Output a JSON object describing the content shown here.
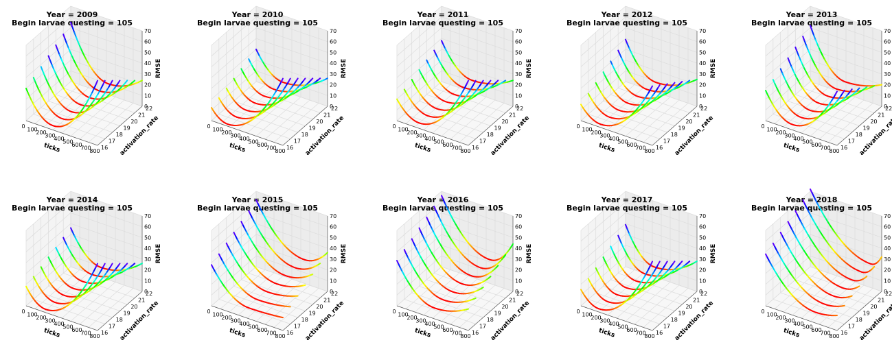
{
  "figure": {
    "shared": {
      "zlabel": "RMSE",
      "xlabel": "ticks",
      "ylabel": "activation_rate",
      "xticks": [
        "0",
        "100",
        "200",
        "300",
        "400",
        "500",
        "600",
        "700",
        "800"
      ],
      "yticks": [
        "16",
        "17",
        "18",
        "19",
        "20",
        "21",
        "22"
      ],
      "zticks": [
        "0",
        "10",
        "20",
        "30",
        "40",
        "50",
        "60",
        "70"
      ]
    }
  },
  "chart_data": [
    {
      "type": "line3d",
      "title_line1": "Year = 2009",
      "title_line2": "Begin larvae questing = 105",
      "xlim": [
        0,
        800
      ],
      "ylim": [
        16,
        22
      ],
      "zlim": [
        0,
        70
      ],
      "colormap": "hsv, by activation_rate",
      "curves": [
        {
          "activation_rate": 16,
          "z_start": 30,
          "z_min": 4,
          "x_min": 300,
          "z_end": 60
        },
        {
          "activation_rate": 17,
          "z_start": 34,
          "z_min": 5,
          "x_min": 320,
          "z_end": 54
        },
        {
          "activation_rate": 18,
          "z_start": 38,
          "z_min": 6,
          "x_min": 340,
          "z_end": 48
        },
        {
          "activation_rate": 19,
          "z_start": 42,
          "z_min": 7,
          "x_min": 360,
          "z_end": 42
        },
        {
          "activation_rate": 20,
          "z_start": 46,
          "z_min": 8,
          "x_min": 380,
          "z_end": 36
        },
        {
          "activation_rate": 21,
          "z_start": 50,
          "z_min": 9,
          "x_min": 400,
          "z_end": 30
        },
        {
          "activation_rate": 22,
          "z_start": 55,
          "z_min": 10,
          "x_min": 420,
          "z_end": 24
        }
      ]
    },
    {
      "type": "line3d",
      "title_line1": "Year = 2010",
      "title_line2": "Begin larvae questing = 105",
      "xlim": [
        0,
        800
      ],
      "ylim": [
        16,
        22
      ],
      "zlim": [
        0,
        70
      ],
      "colormap": "hsv, by activation_rate",
      "curves": [
        {
          "activation_rate": 16,
          "z_start": 12,
          "z_min": 2,
          "x_min": 180,
          "z_end": 62
        },
        {
          "activation_rate": 17,
          "z_start": 15,
          "z_min": 3,
          "x_min": 200,
          "z_end": 56
        },
        {
          "activation_rate": 18,
          "z_start": 18,
          "z_min": 4,
          "x_min": 220,
          "z_end": 50
        },
        {
          "activation_rate": 19,
          "z_start": 21,
          "z_min": 5,
          "x_min": 240,
          "z_end": 44
        },
        {
          "activation_rate": 20,
          "z_start": 24,
          "z_min": 6,
          "x_min": 260,
          "z_end": 38
        },
        {
          "activation_rate": 21,
          "z_start": 27,
          "z_min": 7,
          "x_min": 280,
          "z_end": 32
        },
        {
          "activation_rate": 22,
          "z_start": 30,
          "z_min": 8,
          "x_min": 300,
          "z_end": 26
        }
      ]
    },
    {
      "type": "line3d",
      "title_line1": "Year = 2011",
      "title_line2": "Begin larvae questing = 105",
      "xlim": [
        0,
        800
      ],
      "ylim": [
        16,
        22
      ],
      "zlim": [
        0,
        70
      ],
      "colormap": "hsv, by activation_rate",
      "curves": [
        {
          "activation_rate": 16,
          "z_start": 20,
          "z_min": 5,
          "x_min": 250,
          "z_end": 60
        },
        {
          "activation_rate": 17,
          "z_start": 23,
          "z_min": 6,
          "x_min": 265,
          "z_end": 54
        },
        {
          "activation_rate": 18,
          "z_start": 26,
          "z_min": 7,
          "x_min": 280,
          "z_end": 48
        },
        {
          "activation_rate": 19,
          "z_start": 29,
          "z_min": 8,
          "x_min": 295,
          "z_end": 42
        },
        {
          "activation_rate": 20,
          "z_start": 32,
          "z_min": 9,
          "x_min": 310,
          "z_end": 36
        },
        {
          "activation_rate": 21,
          "z_start": 35,
          "z_min": 10,
          "x_min": 325,
          "z_end": 30
        },
        {
          "activation_rate": 22,
          "z_start": 38,
          "z_min": 11,
          "x_min": 340,
          "z_end": 24
        }
      ]
    },
    {
      "type": "line3d",
      "title_line1": "Year = 2012",
      "title_line2": "Begin larvae questing = 105",
      "xlim": [
        0,
        800
      ],
      "ylim": [
        16,
        22
      ],
      "zlim": [
        0,
        70
      ],
      "colormap": "hsv, by activation_rate",
      "curves": [
        {
          "activation_rate": 16,
          "z_start": 15,
          "z_min": 3,
          "x_min": 220,
          "z_end": 55
        },
        {
          "activation_rate": 17,
          "z_start": 19,
          "z_min": 4,
          "x_min": 240,
          "z_end": 50
        },
        {
          "activation_rate": 18,
          "z_start": 23,
          "z_min": 5,
          "x_min": 260,
          "z_end": 45
        },
        {
          "activation_rate": 19,
          "z_start": 27,
          "z_min": 6,
          "x_min": 280,
          "z_end": 40
        },
        {
          "activation_rate": 20,
          "z_start": 31,
          "z_min": 7,
          "x_min": 300,
          "z_end": 35
        },
        {
          "activation_rate": 21,
          "z_start": 35,
          "z_min": 8,
          "x_min": 320,
          "z_end": 30
        },
        {
          "activation_rate": 22,
          "z_start": 39,
          "z_min": 9,
          "x_min": 340,
          "z_end": 25
        }
      ]
    },
    {
      "type": "line3d",
      "title_line1": "Year = 2013",
      "title_line2": "Begin larvae questing = 105",
      "xlim": [
        0,
        800
      ],
      "ylim": [
        16,
        22
      ],
      "zlim": [
        0,
        70
      ],
      "colormap": "hsv, by activation_rate",
      "curves": [
        {
          "activation_rate": 16,
          "z_start": 28,
          "z_min": 5,
          "x_min": 300,
          "z_end": 50
        },
        {
          "activation_rate": 17,
          "z_start": 32,
          "z_min": 6,
          "x_min": 315,
          "z_end": 45
        },
        {
          "activation_rate": 18,
          "z_start": 36,
          "z_min": 7,
          "x_min": 330,
          "z_end": 40
        },
        {
          "activation_rate": 19,
          "z_start": 40,
          "z_min": 8,
          "x_min": 345,
          "z_end": 35
        },
        {
          "activation_rate": 20,
          "z_start": 44,
          "z_min": 9,
          "x_min": 360,
          "z_end": 30
        },
        {
          "activation_rate": 21,
          "z_start": 48,
          "z_min": 10,
          "x_min": 375,
          "z_end": 25
        },
        {
          "activation_rate": 22,
          "z_start": 52,
          "z_min": 11,
          "x_min": 390,
          "z_end": 20
        }
      ]
    },
    {
      "type": "line3d",
      "title_line1": "Year = 2014",
      "title_line2": "Begin larvae questing = 105",
      "xlim": [
        0,
        800
      ],
      "ylim": [
        16,
        22
      ],
      "zlim": [
        0,
        70
      ],
      "colormap": "hsv, by activation_rate",
      "curves": [
        {
          "activation_rate": 16,
          "z_start": 18,
          "z_min": 3,
          "x_min": 220,
          "z_end": 62
        },
        {
          "activation_rate": 17,
          "z_start": 21,
          "z_min": 4,
          "x_min": 240,
          "z_end": 56
        },
        {
          "activation_rate": 18,
          "z_start": 24,
          "z_min": 5,
          "x_min": 260,
          "z_end": 50
        },
        {
          "activation_rate": 19,
          "z_start": 27,
          "z_min": 6,
          "x_min": 280,
          "z_end": 44
        },
        {
          "activation_rate": 20,
          "z_start": 30,
          "z_min": 7,
          "x_min": 300,
          "z_end": 38
        },
        {
          "activation_rate": 21,
          "z_start": 33,
          "z_min": 8,
          "x_min": 320,
          "z_end": 32
        },
        {
          "activation_rate": 22,
          "z_start": 36,
          "z_min": 9,
          "x_min": 340,
          "z_end": 26
        }
      ]
    },
    {
      "type": "line3d",
      "title_line1": "Year = 2015",
      "title_line2": "Begin larvae questing = 105",
      "xlim": [
        0,
        800
      ],
      "ylim": [
        16,
        22
      ],
      "zlim": [
        0,
        70
      ],
      "colormap": "hsv, by activation_rate",
      "curves": [
        {
          "activation_rate": 16,
          "z_start": 38,
          "z_min": 10,
          "x_min": 420,
          "z_end": 12
        },
        {
          "activation_rate": 17,
          "z_start": 42,
          "z_min": 12,
          "x_min": 440,
          "z_end": 16
        },
        {
          "activation_rate": 18,
          "z_start": 46,
          "z_min": 14,
          "x_min": 460,
          "z_end": 20
        },
        {
          "activation_rate": 19,
          "z_start": 50,
          "z_min": 16,
          "x_min": 480,
          "z_end": 24
        },
        {
          "activation_rate": 20,
          "z_start": 54,
          "z_min": 18,
          "x_min": 500,
          "z_end": 28
        },
        {
          "activation_rate": 21,
          "z_start": 58,
          "z_min": 20,
          "x_min": 520,
          "z_end": 32
        },
        {
          "activation_rate": 22,
          "z_start": 62,
          "z_min": 22,
          "x_min": 540,
          "z_end": 36
        }
      ]
    },
    {
      "type": "line3d",
      "title_line1": "Year = 2016",
      "title_line2": "Begin larvae questing = 105",
      "xlim": [
        0,
        800
      ],
      "ylim": [
        16,
        22
      ],
      "zlim": [
        0,
        70
      ],
      "colormap": "hsv, by activation_rate",
      "curves": [
        {
          "activation_rate": 16,
          "z_start": 42,
          "z_min": 10,
          "x_min": 420,
          "z_end": 20
        },
        {
          "activation_rate": 17,
          "z_start": 46,
          "z_min": 12,
          "x_min": 440,
          "z_end": 24
        },
        {
          "activation_rate": 18,
          "z_start": 50,
          "z_min": 14,
          "x_min": 460,
          "z_end": 28
        },
        {
          "activation_rate": 19,
          "z_start": 54,
          "z_min": 16,
          "x_min": 480,
          "z_end": 32
        },
        {
          "activation_rate": 20,
          "z_start": 58,
          "z_min": 18,
          "x_min": 500,
          "z_end": 36
        },
        {
          "activation_rate": 21,
          "z_start": 62,
          "z_min": 20,
          "x_min": 520,
          "z_end": 40
        },
        {
          "activation_rate": 22,
          "z_start": 66,
          "z_min": 22,
          "x_min": 540,
          "z_end": 44
        }
      ]
    },
    {
      "type": "line3d",
      "title_line1": "Year = 2017",
      "title_line2": "Begin larvae questing = 105",
      "xlim": [
        0,
        800
      ],
      "ylim": [
        16,
        22
      ],
      "zlim": [
        0,
        70
      ],
      "colormap": "hsv, by activation_rate",
      "curves": [
        {
          "activation_rate": 16,
          "z_start": 15,
          "z_min": 3,
          "x_min": 200,
          "z_end": 64
        },
        {
          "activation_rate": 17,
          "z_start": 19,
          "z_min": 4,
          "x_min": 220,
          "z_end": 58
        },
        {
          "activation_rate": 18,
          "z_start": 23,
          "z_min": 5,
          "x_min": 240,
          "z_end": 52
        },
        {
          "activation_rate": 19,
          "z_start": 27,
          "z_min": 6,
          "x_min": 260,
          "z_end": 46
        },
        {
          "activation_rate": 20,
          "z_start": 31,
          "z_min": 7,
          "x_min": 280,
          "z_end": 40
        },
        {
          "activation_rate": 21,
          "z_start": 35,
          "z_min": 8,
          "x_min": 300,
          "z_end": 34
        },
        {
          "activation_rate": 22,
          "z_start": 39,
          "z_min": 9,
          "x_min": 320,
          "z_end": 28
        }
      ]
    },
    {
      "type": "line3d",
      "title_line1": "Year = 2018",
      "title_line2": "Begin larvae questing = 105",
      "xlim": [
        0,
        800
      ],
      "ylim": [
        16,
        22
      ],
      "zlim": [
        0,
        70
      ],
      "colormap": "hsv, by activation_rate",
      "curves": [
        {
          "activation_rate": 16,
          "z_start": 48,
          "z_min": 10,
          "x_min": 560,
          "z_end": 14
        },
        {
          "activation_rate": 17,
          "z_start": 52,
          "z_min": 12,
          "x_min": 580,
          "z_end": 17
        },
        {
          "activation_rate": 18,
          "z_start": 56,
          "z_min": 14,
          "x_min": 600,
          "z_end": 20
        },
        {
          "activation_rate": 19,
          "z_start": 60,
          "z_min": 16,
          "x_min": 620,
          "z_end": 23
        },
        {
          "activation_rate": 20,
          "z_start": 64,
          "z_min": 18,
          "x_min": 640,
          "z_end": 26
        },
        {
          "activation_rate": 21,
          "z_start": 68,
          "z_min": 20,
          "x_min": 660,
          "z_end": 29
        },
        {
          "activation_rate": 22,
          "z_start": 72,
          "z_min": 22,
          "x_min": 680,
          "z_end": 32
        }
      ]
    }
  ]
}
